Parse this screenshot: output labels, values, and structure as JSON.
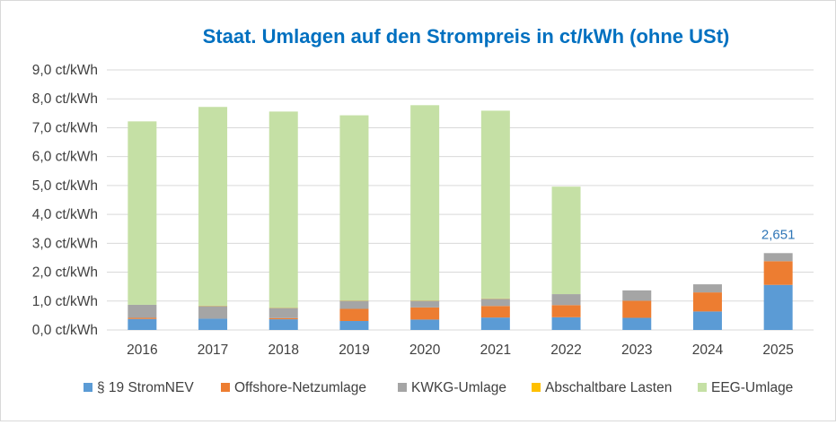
{
  "chart_data": {
    "type": "bar",
    "stacked": true,
    "title": "Staat. Umlagen auf den Strompreis in ct/kWh (ohne USt)",
    "xlabel": "",
    "ylabel": "",
    "categories": [
      "2016",
      "2017",
      "2018",
      "2019",
      "2020",
      "2021",
      "2022",
      "2023",
      "2024",
      "2025"
    ],
    "ylim": [
      0,
      9
    ],
    "yticks": [
      0,
      1,
      2,
      3,
      4,
      5,
      6,
      7,
      8,
      9
    ],
    "ytick_labels": [
      "0,0 ct/kWh",
      "1,0 ct/kWh",
      "2,0 ct/kWh",
      "3,0 ct/kWh",
      "4,0 ct/kWh",
      "5,0 ct/kWh",
      "6,0 ct/kWh",
      "7,0 ct/kWh",
      "8,0 ct/kWh",
      "9,0 ct/kWh"
    ],
    "grid": true,
    "legend_position": "bottom",
    "series": [
      {
        "name": "§ 19 StromNEV",
        "color": "#5b9bd5",
        "values": [
          0.38,
          0.39,
          0.37,
          0.31,
          0.36,
          0.43,
          0.44,
          0.42,
          0.64,
          1.56
        ]
      },
      {
        "name": "Offshore-Netzumlage",
        "color": "#ed7d31",
        "values": [
          0.04,
          -0.03,
          0.04,
          0.42,
          0.42,
          0.4,
          0.42,
          0.59,
          0.66,
          0.82
        ]
      },
      {
        "name": "KWKG-Umlage",
        "color": "#a5a5a5",
        "values": [
          0.45,
          0.44,
          0.35,
          0.28,
          0.23,
          0.25,
          0.38,
          0.36,
          0.28,
          0.28
        ]
      },
      {
        "name": "Abschaltbare Lasten",
        "color": "#ffc000",
        "values": [
          0.0,
          0.01,
          0.01,
          0.01,
          0.01,
          0.01,
          0.0,
          0.0,
          0.0,
          0.0
        ]
      },
      {
        "name": "EEG-Umlage",
        "color": "#c5e0a5",
        "values": [
          6.35,
          6.88,
          6.79,
          6.41,
          6.76,
          6.5,
          3.72,
          0.0,
          0.0,
          0.0
        ]
      }
    ],
    "annotations": [
      {
        "category": "2025",
        "text": "2,651"
      }
    ]
  }
}
